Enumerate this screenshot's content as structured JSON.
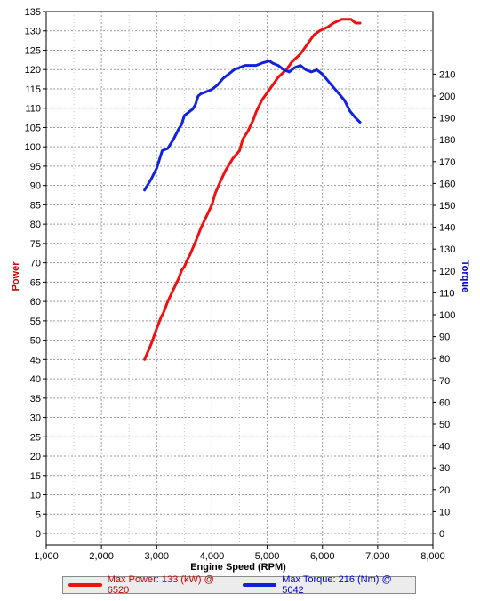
{
  "chart_data": {
    "type": "line",
    "xlabel": "Engine Speed (RPM)",
    "y_left_label": "Power",
    "y_right_label": "Torque",
    "xlim": [
      1000,
      8000
    ],
    "x_ticks": [
      "1,000",
      "2,000",
      "3,000",
      "4,000",
      "5,000",
      "6,000",
      "7,000",
      "8,000"
    ],
    "y_left_lim": [
      0,
      135
    ],
    "y_left_ticks": [
      "0",
      "5",
      "10",
      "15",
      "20",
      "25",
      "30",
      "35",
      "40",
      "45",
      "50",
      "55",
      "60",
      "65",
      "70",
      "75",
      "80",
      "85",
      "90",
      "95",
      "100",
      "105",
      "110",
      "115",
      "120",
      "125",
      "130",
      "135"
    ],
    "y_right_lim": [
      0,
      220
    ],
    "y_right_ticks": [
      "0",
      "10",
      "20",
      "30",
      "40",
      "50",
      "60",
      "70",
      "80",
      "90",
      "100",
      "110",
      "120",
      "130",
      "140",
      "150",
      "160",
      "170",
      "180",
      "190",
      "200",
      "210"
    ],
    "grid": true,
    "colors": {
      "power": "#ee1111",
      "torque": "#1122dd",
      "power_axis": "#cc0000",
      "torque_axis": "#0000cc"
    },
    "series": [
      {
        "name": "Power",
        "axis": "left",
        "x": [
          2780,
          2900,
          3000,
          3080,
          3120,
          3200,
          3300,
          3400,
          3450,
          3500,
          3560,
          3600,
          3660,
          3720,
          3800,
          3900,
          4000,
          4060,
          4150,
          4250,
          4380,
          4500,
          4560,
          4650,
          4750,
          4800,
          4900,
          5000,
          5100,
          5200,
          5350,
          5450,
          5600,
          5700,
          5800,
          5850,
          5950,
          6100,
          6200,
          6350,
          6450,
          6520,
          6600,
          6680
        ],
        "values": [
          45,
          49,
          53,
          56,
          57,
          60,
          63,
          66,
          68,
          69,
          71,
          72,
          74,
          76,
          79,
          82,
          85,
          88,
          91,
          94,
          97,
          99,
          102,
          104,
          107,
          109,
          112,
          114,
          116,
          118,
          120,
          122,
          124,
          126,
          128,
          129,
          130,
          131,
          132,
          133,
          133,
          133,
          132,
          132
        ]
      },
      {
        "name": "Torque",
        "axis": "right",
        "x": [
          2780,
          2900,
          3000,
          3050,
          3100,
          3200,
          3300,
          3400,
          3450,
          3500,
          3600,
          3650,
          3700,
          3750,
          3800,
          3900,
          4000,
          4100,
          4200,
          4300,
          4400,
          4500,
          4600,
          4700,
          4800,
          4900,
          5042,
          5100,
          5200,
          5300,
          5400,
          5500,
          5600,
          5700,
          5800,
          5900,
          6000,
          6100,
          6200,
          6300,
          6400,
          6500,
          6600,
          6680
        ],
        "values": [
          157,
          162,
          167,
          171,
          175,
          176,
          180,
          185,
          187,
          191,
          193,
          194,
          196,
          200,
          201,
          202,
          203,
          205,
          208,
          210,
          212,
          213,
          214,
          214,
          214,
          215,
          216,
          215,
          214,
          212,
          211,
          213,
          214,
          212,
          211,
          212,
          210,
          207,
          204,
          201,
          198,
          193,
          190,
          188
        ]
      }
    ]
  },
  "legend": {
    "power_text": "Max Power: 133 (kW) @ 6520",
    "torque_text": "Max Torque: 216 (Nm) @ 5042"
  }
}
